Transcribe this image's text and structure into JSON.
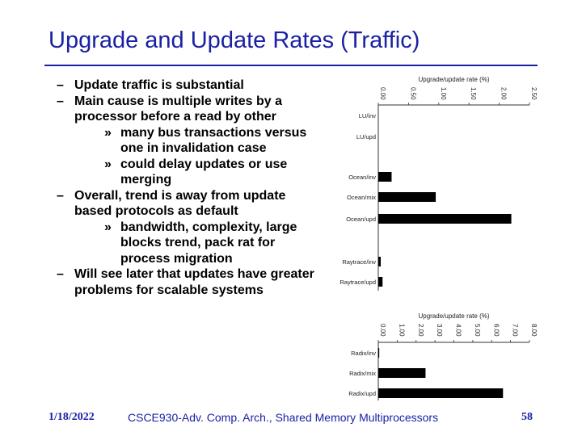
{
  "slide": {
    "title": "Upgrade and Update Rates (Traffic)",
    "bullets": [
      {
        "dash": "–",
        "text": "Update traffic is substantial",
        "sub": []
      },
      {
        "dash": "–",
        "text": "Main cause is multiple writes by a processor before a read by other",
        "sub": [
          {
            "marker": "»",
            "text": "many bus transactions versus one in invalidation case"
          },
          {
            "marker": "»",
            "text": "could delay updates or use merging"
          }
        ]
      },
      {
        "dash": "–",
        "text": "Overall, trend is away from update based protocols as default",
        "sub": [
          {
            "marker": "»",
            "text": "bandwidth, complexity, large blocks trend, pack rat for process migration"
          }
        ]
      },
      {
        "dash": "–",
        "text": "Will see later that updates have greater problems for scalable systems",
        "sub": []
      }
    ]
  },
  "footer": {
    "date": "1/18/2022",
    "course": "CSCE930-Adv. Comp. Arch., Shared Memory Multiprocessors",
    "page": "58"
  },
  "colors": {
    "title": "#1a21a3",
    "bar": "#000000"
  },
  "chart_data": [
    {
      "type": "bar",
      "orientation": "horizontal",
      "title": "Upgrade/update rate (%)",
      "xlim": [
        0,
        2.5
      ],
      "ticks": [
        "0.00",
        "0.50",
        "1.00",
        "1.50",
        "2.00",
        "2.50"
      ],
      "categories": [
        "LU/inv",
        "LU/upd",
        "Ocean/inv",
        "Ocean/mix",
        "Ocean/upd",
        "Raytrace/inv",
        "Raytrace/upd"
      ],
      "values": [
        0.0,
        0.0,
        0.22,
        0.95,
        2.2,
        0.04,
        0.07
      ]
    },
    {
      "type": "bar",
      "orientation": "horizontal",
      "title": "Upgrade/update rate (%)",
      "xlim": [
        0,
        8
      ],
      "ticks": [
        "0.00",
        "1.00",
        "2.00",
        "3.00",
        "4.00",
        "5.00",
        "6.00",
        "7.00",
        "8.00"
      ],
      "categories": [
        "Radix/inv",
        "Radix/mix",
        "Radix/upd"
      ],
      "values": [
        0.05,
        2.5,
        6.6
      ]
    }
  ]
}
